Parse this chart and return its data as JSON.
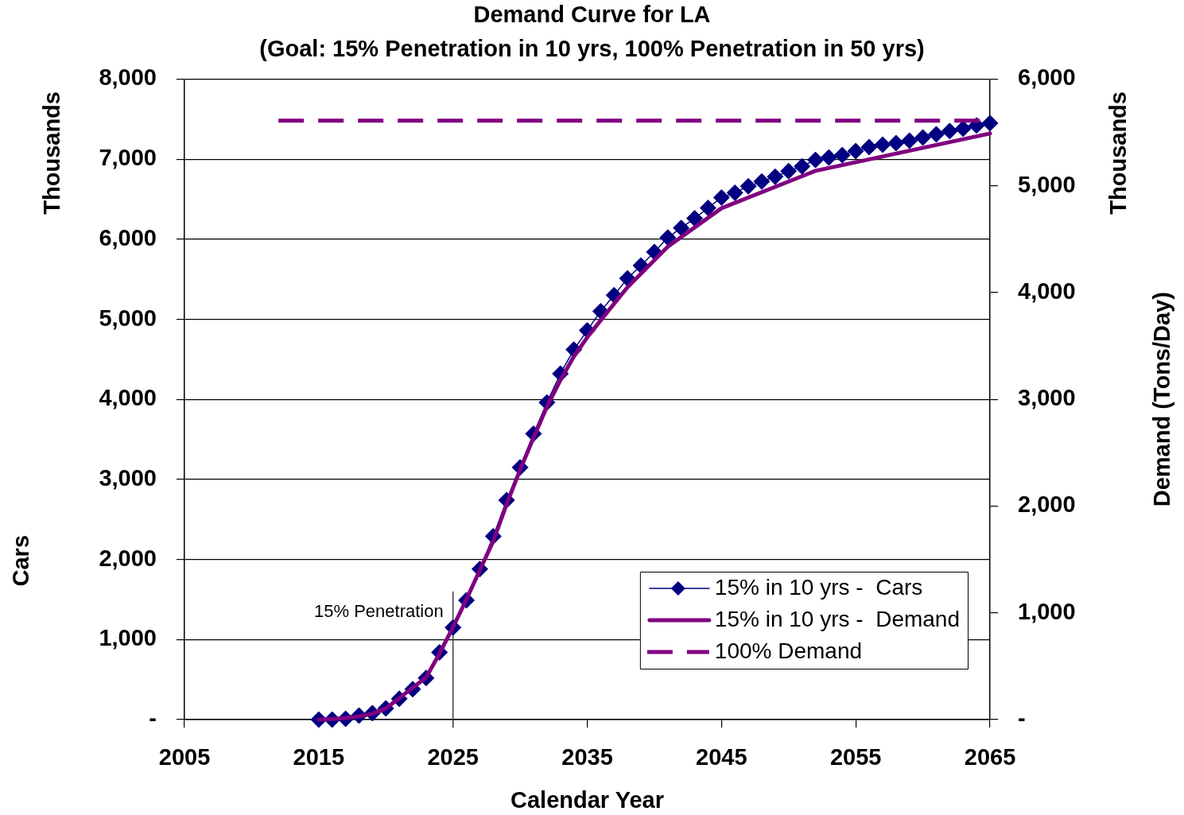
{
  "chart_data": {
    "type": "line",
    "title": "Demand Curve for LA",
    "subtitle": "(Goal: 15% Penetration in 10 yrs, 100% Penetration in 50 yrs)",
    "xlabel": "Calendar Year",
    "ylabel": "Cars",
    "y2label": "Demand (Tons/Day)",
    "annotations": [
      "Thousands",
      "Thousands"
    ],
    "x": [
      2015,
      2016,
      2017,
      2018,
      2019,
      2020,
      2021,
      2022,
      2023,
      2024,
      2025,
      2026,
      2027,
      2028,
      2029,
      2030,
      2031,
      2032,
      2033,
      2034,
      2035,
      2036,
      2037,
      2038,
      2039,
      2040,
      2041,
      2042,
      2043,
      2044,
      2045,
      2046,
      2047,
      2048,
      2049,
      2050,
      2051,
      2052,
      2053,
      2054,
      2055,
      2056,
      2057,
      2058,
      2059,
      2060,
      2061,
      2062,
      2063,
      2064,
      2065
    ],
    "series": [
      {
        "name": "15% in 10 yrs -  Cars",
        "color": "#000080",
        "marker": "diamond",
        "line_style": "solid",
        "values": [
          0,
          0,
          10,
          50,
          80,
          140,
          260,
          380,
          520,
          840,
          1150,
          1490,
          1880,
          2290,
          2740,
          3150,
          3570,
          3960,
          4320,
          4620,
          4860,
          5100,
          5300,
          5510,
          5670,
          5840,
          6020,
          6140,
          6260,
          6390,
          6520,
          6580,
          6660,
          6720,
          6780,
          6850,
          6910,
          6990,
          7020,
          7050,
          7100,
          7150,
          7180,
          7200,
          7230,
          7270,
          7310,
          7350,
          7380,
          7420,
          7450
        ]
      },
      {
        "name": "15% in 10 yrs -  Demand",
        "color": "#800080",
        "marker": "none",
        "line_style": "solid",
        "axis": "y2",
        "x": [
          2015,
          2016,
          2017,
          2018,
          2019,
          2020,
          2023,
          2024,
          2025,
          2026,
          2027,
          2028,
          2029,
          2030,
          2031,
          2032,
          2033,
          2034,
          2035,
          2036,
          2038,
          2041,
          2045,
          2052,
          2065
        ],
        "values": [
          0,
          5,
          15,
          30,
          55,
          105,
          395,
          620,
          865,
          1125,
          1400,
          1670,
          2020,
          2340,
          2640,
          2930,
          3180,
          3400,
          3580,
          3740,
          4050,
          4430,
          4790,
          5140,
          5490
        ]
      },
      {
        "name": "100% Demand",
        "color": "#800080",
        "marker": "none",
        "line_style": "dashed",
        "axis": "y2",
        "x": [
          2012,
          2065
        ],
        "values": [
          5610,
          5610
        ]
      }
    ],
    "xlim": [
      2005,
      2065
    ],
    "xticks": [
      2005,
      2015,
      2025,
      2035,
      2045,
      2055,
      2065
    ],
    "ylim": [
      0,
      8000
    ],
    "yticks": [
      {
        "value": 0,
        "label": "-"
      },
      {
        "value": 1000,
        "label": "1,000"
      },
      {
        "value": 2000,
        "label": "2,000"
      },
      {
        "value": 3000,
        "label": "3,000"
      },
      {
        "value": 4000,
        "label": "4,000"
      },
      {
        "value": 5000,
        "label": "5,000"
      },
      {
        "value": 6000,
        "label": "6,000"
      },
      {
        "value": 7000,
        "label": "7,000"
      },
      {
        "value": 8000,
        "label": "8,000"
      }
    ],
    "y2lim": [
      0,
      6000
    ],
    "y2ticks": [
      {
        "value": 0,
        "label": "-"
      },
      {
        "value": 1000,
        "label": "1,000"
      },
      {
        "value": 2000,
        "label": "2,000"
      },
      {
        "value": 3000,
        "label": "3,000"
      },
      {
        "value": 4000,
        "label": "4,000"
      },
      {
        "value": 5000,
        "label": "5,000"
      },
      {
        "value": 6000,
        "label": "6,000"
      }
    ],
    "ref_lines": [
      {
        "axis": "x",
        "value": 2025,
        "label": "15% Penetration",
        "color": "#404040"
      }
    ],
    "grid": "y",
    "legend": "bottom right"
  }
}
